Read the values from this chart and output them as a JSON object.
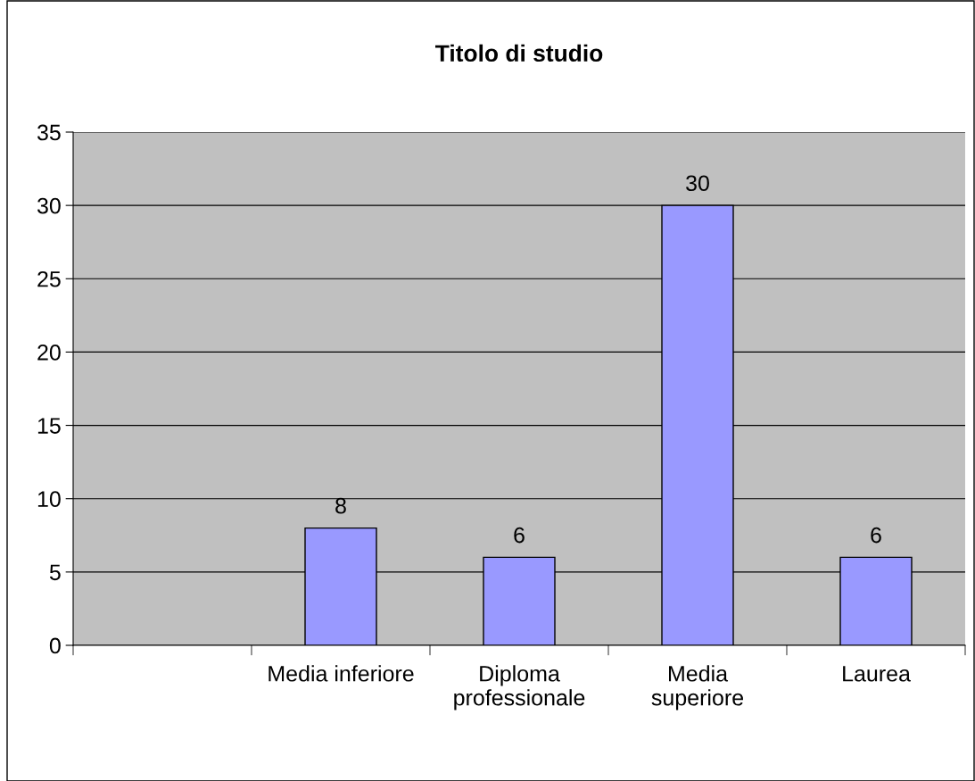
{
  "chart_data": {
    "type": "bar",
    "title": "Titolo di studio",
    "categories": [
      null,
      "Media inferiore",
      "Diploma\nprofessionale",
      "Media\nsuperiore",
      "Laurea"
    ],
    "values": [
      null,
      8,
      6,
      30,
      6
    ],
    "color": "#9999ff",
    "ylim": [
      0,
      35
    ],
    "yticks": [
      0,
      5,
      10,
      15,
      20,
      25,
      30,
      35
    ],
    "grid": "y",
    "data_labels": true
  }
}
